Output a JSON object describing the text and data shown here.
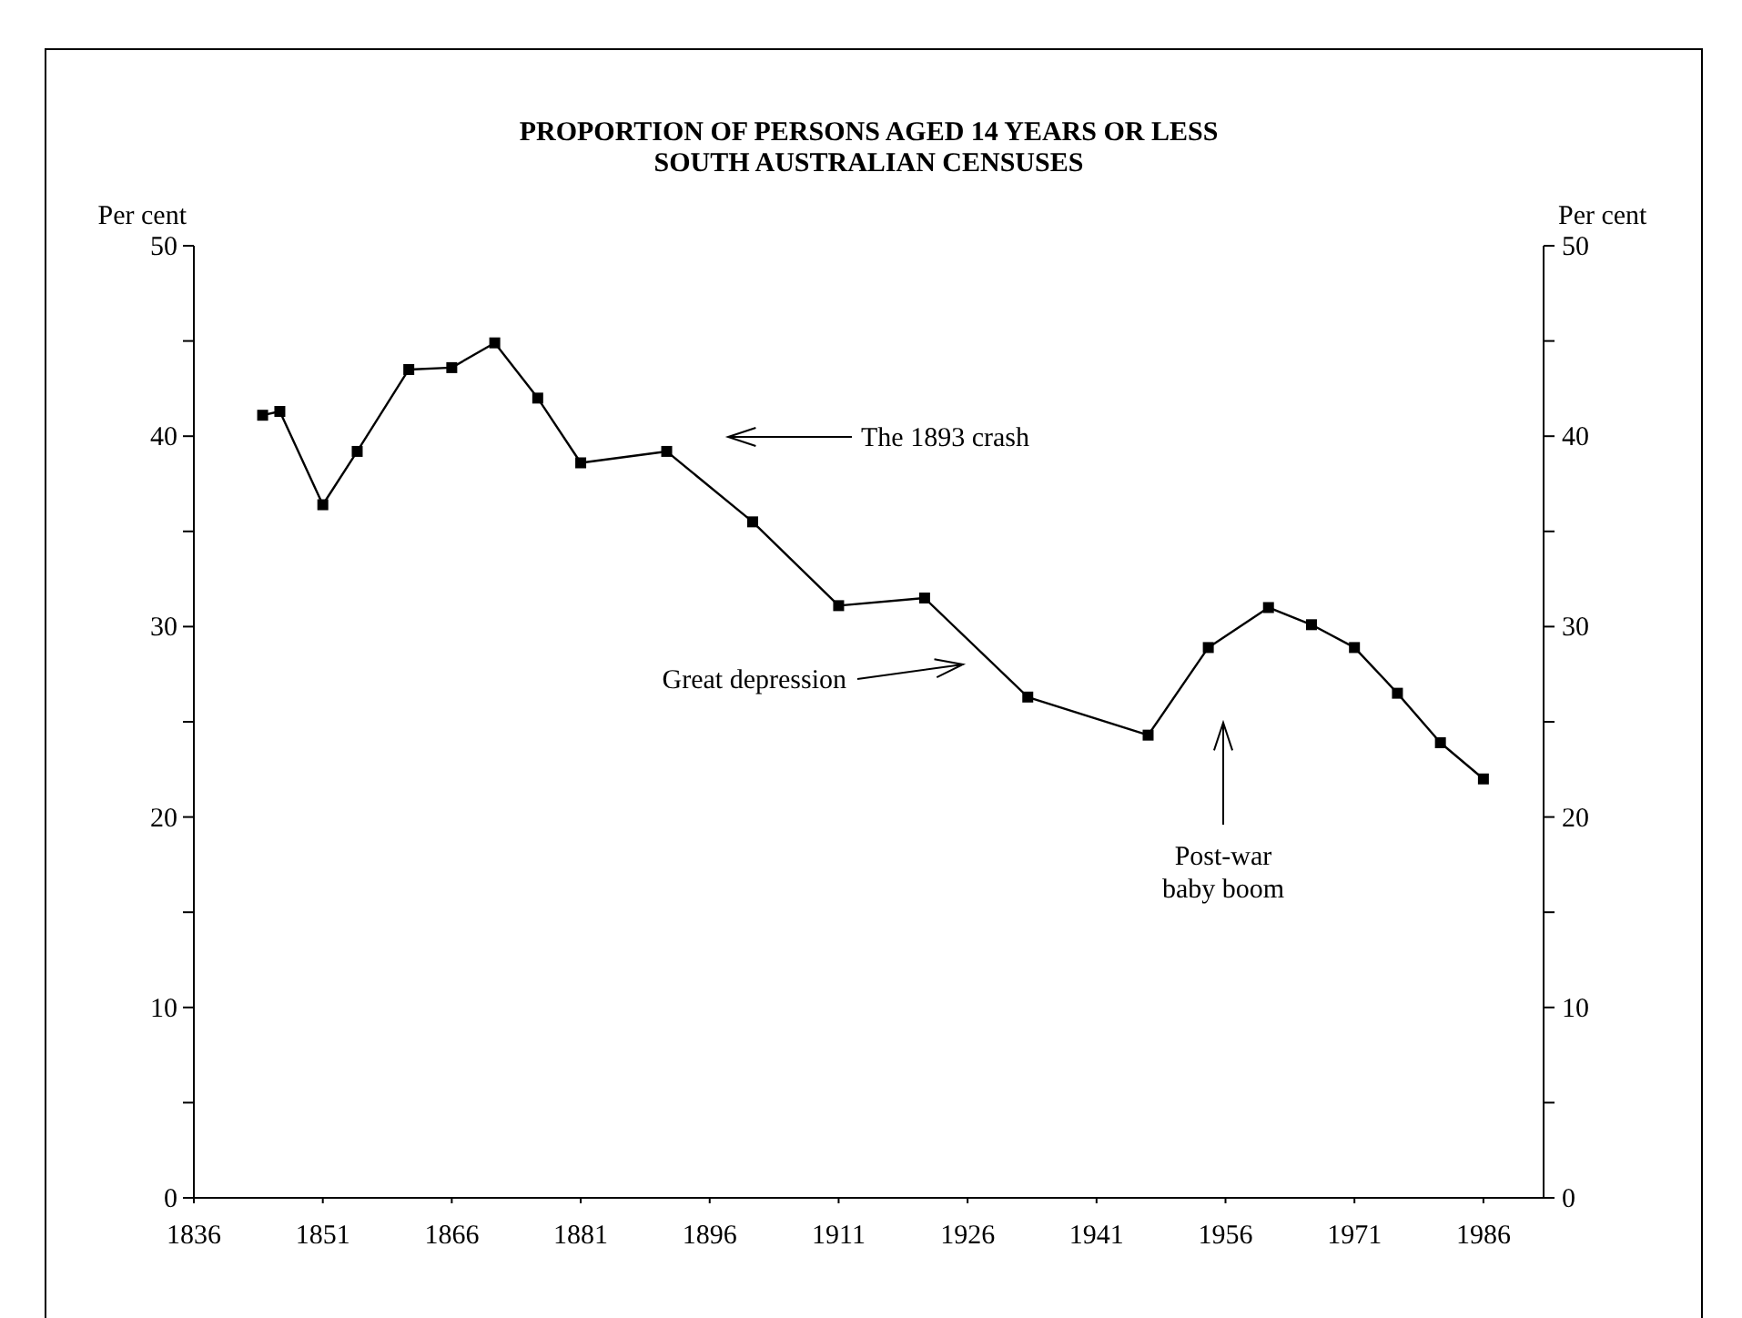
{
  "chart_data": {
    "type": "line",
    "title": "PROPORTION OF PERSONS AGED 14 YEARS OR LESS\nSOUTH AUSTRALIAN CENSUSES",
    "ylabel": "Per cent",
    "y2label": "Per cent",
    "x": [
      1844,
      1846,
      1851,
      1855,
      1861,
      1866,
      1871,
      1876,
      1881,
      1891,
      1901,
      1911,
      1921,
      1933,
      1947,
      1954,
      1961,
      1966,
      1971,
      1976,
      1981,
      1986
    ],
    "series": [
      {
        "color": "#000000",
        "values": [
          41.1,
          41.3,
          36.4,
          39.2,
          43.5,
          43.6,
          44.9,
          42.0,
          38.6,
          39.2,
          35.5,
          31.1,
          31.5,
          26.3,
          24.3,
          28.9,
          31.0,
          30.1,
          28.9,
          26.5,
          23.9,
          22.0
        ]
      }
    ],
    "xlim": [
      1836,
      1993
    ],
    "xticks": [
      1836,
      1851,
      1866,
      1881,
      1896,
      1911,
      1926,
      1941,
      1956,
      1971,
      1986
    ],
    "ylim": [
      0,
      50
    ],
    "yticks": [
      0,
      {
        "value": 5,
        "label": null
      },
      10,
      {
        "value": 15,
        "label": null
      },
      20,
      {
        "value": 25,
        "label": null
      },
      30,
      {
        "value": 35,
        "label": null
      },
      40,
      {
        "value": 45,
        "label": null
      },
      50
    ],
    "y2lim": [
      0,
      50
    ],
    "y2ticks": [
      0,
      {
        "value": 5,
        "label": null
      },
      10,
      {
        "value": 15,
        "label": null
      },
      20,
      {
        "value": 25,
        "label": null
      },
      30,
      {
        "value": 35,
        "label": null
      },
      40,
      {
        "value": 45,
        "label": null
      },
      50
    ],
    "marker": "square",
    "line_style": "solid",
    "annotations": [
      "The 1893 crash",
      "Great depression",
      "Post-war\nbaby boom"
    ]
  }
}
